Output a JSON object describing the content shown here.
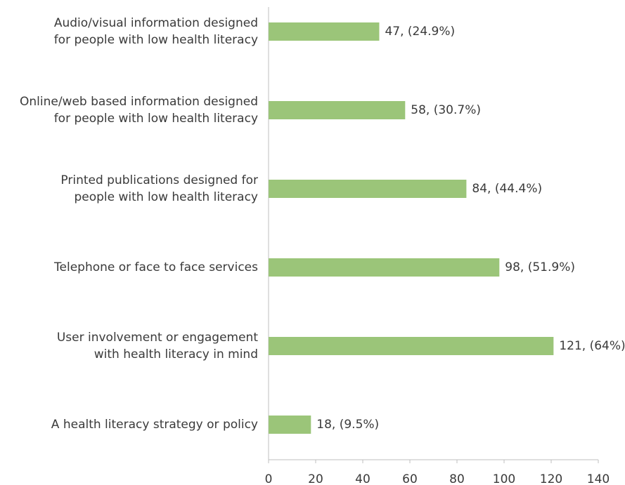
{
  "chart_data": {
    "type": "bar",
    "orientation": "horizontal",
    "categories": [
      [
        "Audio/visual information designed",
        "for people with low health literacy"
      ],
      [
        "Online/web based information designed",
        "for people with low health literacy"
      ],
      [
        "Printed publications designed for",
        "people with low health literacy"
      ],
      [
        "Telephone or face to face services"
      ],
      [
        "User involvement or engagement",
        "with health literacy in mind"
      ],
      [
        "A health literacy strategy or policy"
      ]
    ],
    "values": [
      47,
      58,
      84,
      98,
      121,
      18
    ],
    "value_labels": [
      "47, (24.9%)",
      "58, (30.7%)",
      "84, (44.4%)",
      "98, (51.9%)",
      "121, (64%)",
      "18, (9.5%)"
    ],
    "color": "#9bc579",
    "xlim": [
      0,
      140
    ],
    "xticks": [
      0,
      20,
      40,
      60,
      80,
      100,
      120,
      140
    ],
    "grid": false
  }
}
